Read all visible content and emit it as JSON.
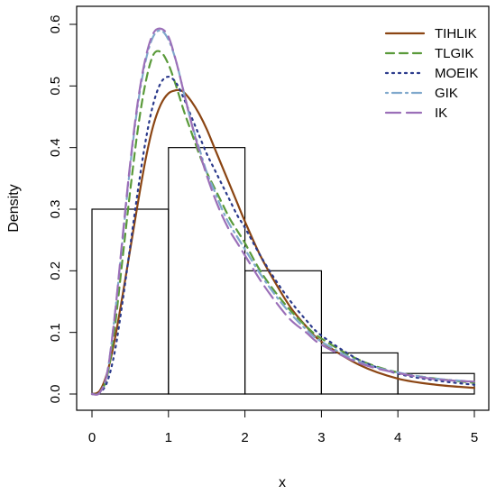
{
  "chart_data": {
    "type": "histogram_with_density_curves",
    "xlabel": "x",
    "ylabel": "Density",
    "xlim": [
      0,
      5
    ],
    "ylim": [
      0,
      0.6
    ],
    "x_ticks": [
      "0",
      "1",
      "2",
      "3",
      "4",
      "5"
    ],
    "y_ticks": [
      "0.0",
      "0.1",
      "0.2",
      "0.3",
      "0.4",
      "0.5",
      "0.6"
    ],
    "histogram": {
      "bin_edges": [
        0,
        1,
        2,
        3,
        4,
        5
      ],
      "densities": [
        0.3,
        0.4,
        0.2,
        0.0667,
        0.0333
      ]
    },
    "legend_position": "top-right",
    "series": [
      {
        "name": "TIHLIK",
        "color": "#8B4513",
        "line_style": "solid",
        "x": [
          0,
          0.1,
          0.2,
          0.3,
          0.4,
          0.5,
          0.6,
          0.7,
          0.8,
          0.9,
          1.0,
          1.1,
          1.15,
          1.2,
          1.3,
          1.4,
          1.5,
          1.6,
          1.7,
          1.8,
          1.9,
          2.0,
          2.2,
          2.4,
          2.6,
          2.8,
          3.0,
          3.5,
          4.0,
          4.5,
          5.0
        ],
        "y": [
          0,
          0.005,
          0.035,
          0.09,
          0.16,
          0.235,
          0.31,
          0.38,
          0.435,
          0.47,
          0.488,
          0.493,
          0.493,
          0.49,
          0.475,
          0.455,
          0.43,
          0.4,
          0.37,
          0.34,
          0.31,
          0.28,
          0.225,
          0.18,
          0.14,
          0.11,
          0.085,
          0.047,
          0.025,
          0.015,
          0.01
        ]
      },
      {
        "name": "TLGIK",
        "color": "#5A9A3A",
        "line_style": "dashed",
        "x": [
          0,
          0.1,
          0.2,
          0.3,
          0.4,
          0.5,
          0.6,
          0.7,
          0.8,
          0.9,
          1.0,
          1.1,
          1.2,
          1.3,
          1.4,
          1.5,
          1.6,
          1.7,
          1.8,
          1.9,
          2.0,
          2.2,
          2.4,
          2.6,
          2.8,
          3.0,
          3.5,
          4.0,
          4.5,
          5.0
        ],
        "y": [
          0,
          0.002,
          0.03,
          0.11,
          0.22,
          0.33,
          0.43,
          0.505,
          0.55,
          0.555,
          0.535,
          0.5,
          0.46,
          0.425,
          0.39,
          0.36,
          0.335,
          0.31,
          0.285,
          0.265,
          0.245,
          0.2,
          0.165,
          0.135,
          0.11,
          0.09,
          0.055,
          0.035,
          0.025,
          0.018
        ]
      },
      {
        "name": "MOEIK",
        "color": "#2B3A8C",
        "line_style": "dotted",
        "x": [
          0,
          0.1,
          0.2,
          0.3,
          0.4,
          0.5,
          0.6,
          0.7,
          0.8,
          0.9,
          1.0,
          1.1,
          1.2,
          1.3,
          1.4,
          1.5,
          1.6,
          1.7,
          1.8,
          1.9,
          2.0,
          2.2,
          2.4,
          2.6,
          2.8,
          3.0,
          3.5,
          4.0,
          4.5,
          5.0
        ],
        "y": [
          0,
          0.002,
          0.02,
          0.07,
          0.15,
          0.24,
          0.33,
          0.41,
          0.47,
          0.505,
          0.515,
          0.505,
          0.48,
          0.45,
          0.42,
          0.39,
          0.365,
          0.34,
          0.315,
          0.29,
          0.27,
          0.225,
          0.185,
          0.15,
          0.12,
          0.095,
          0.055,
          0.033,
          0.022,
          0.015
        ]
      },
      {
        "name": "GIK",
        "color": "#7FA8CC",
        "line_style": "dotdash",
        "x": [
          0,
          0.1,
          0.2,
          0.3,
          0.4,
          0.5,
          0.6,
          0.7,
          0.8,
          0.9,
          1.0,
          1.1,
          1.2,
          1.3,
          1.4,
          1.5,
          1.6,
          1.7,
          1.8,
          1.9,
          2.0,
          2.2,
          2.4,
          2.6,
          2.8,
          3.0,
          3.5,
          4.0,
          4.5,
          5.0
        ],
        "y": [
          0,
          0.002,
          0.035,
          0.13,
          0.25,
          0.37,
          0.47,
          0.54,
          0.58,
          0.59,
          0.575,
          0.54,
          0.49,
          0.44,
          0.4,
          0.36,
          0.33,
          0.3,
          0.275,
          0.255,
          0.235,
          0.195,
          0.16,
          0.13,
          0.105,
          0.085,
          0.052,
          0.035,
          0.025,
          0.02
        ]
      },
      {
        "name": "IK",
        "color": "#9B6FB8",
        "line_style": "longdash",
        "x": [
          0,
          0.1,
          0.2,
          0.3,
          0.4,
          0.5,
          0.6,
          0.7,
          0.8,
          0.9,
          1.0,
          1.1,
          1.2,
          1.3,
          1.4,
          1.5,
          1.6,
          1.7,
          1.8,
          1.9,
          2.0,
          2.2,
          2.4,
          2.6,
          2.8,
          3.0,
          3.5,
          4.0,
          4.5,
          5.0
        ],
        "y": [
          0,
          0.002,
          0.035,
          0.13,
          0.255,
          0.375,
          0.475,
          0.545,
          0.585,
          0.593,
          0.58,
          0.54,
          0.49,
          0.44,
          0.395,
          0.355,
          0.32,
          0.29,
          0.265,
          0.245,
          0.225,
          0.185,
          0.15,
          0.12,
          0.1,
          0.08,
          0.05,
          0.034,
          0.024,
          0.02
        ]
      }
    ]
  }
}
